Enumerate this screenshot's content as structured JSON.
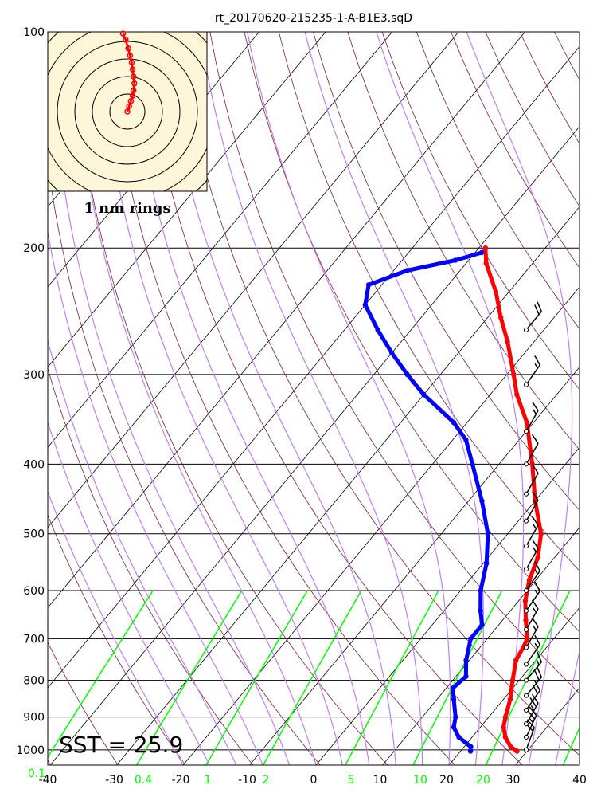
{
  "chart_data": {
    "type": "skew-t",
    "title": "rt_20170620-215235-1-A-B1E3.sqD",
    "pressure_ticks": [
      100,
      200,
      300,
      400,
      500,
      600,
      700,
      800,
      900,
      1000
    ],
    "temperature_ticks": [
      -40,
      -30,
      -20,
      -10,
      0,
      10,
      20,
      30,
      40
    ],
    "mixing_ratio_labels": [
      "0.1",
      "0.4",
      "1",
      "2",
      "5",
      "10",
      "20"
    ],
    "sst_label": "SST = 25.9",
    "hodograph_label": "1 nm rings",
    "colors": {
      "temperature": "#ff0000",
      "dewpoint": "#0000ff",
      "mixing_ratio": "#00ff00",
      "moist_adiabat": "#bf80f0",
      "dry_adiabat": "#7a2035",
      "isotherm": "#000000",
      "hodograph_bg": "#fdf6d8"
    },
    "temperature_profile": [
      {
        "p": 1004,
        "t": 28.5
      },
      {
        "p": 990,
        "t": 27.0
      },
      {
        "p": 960,
        "t": 25.0
      },
      {
        "p": 930,
        "t": 23.5
      },
      {
        "p": 900,
        "t": 22.5
      },
      {
        "p": 850,
        "t": 21.0
      },
      {
        "p": 800,
        "t": 19.0
      },
      {
        "p": 750,
        "t": 17.0
      },
      {
        "p": 720,
        "t": 16.5
      },
      {
        "p": 700,
        "t": 16.0
      },
      {
        "p": 660,
        "t": 13.5
      },
      {
        "p": 620,
        "t": 11.0
      },
      {
        "p": 580,
        "t": 9.0
      },
      {
        "p": 540,
        "t": 7.5
      },
      {
        "p": 500,
        "t": 5.0
      },
      {
        "p": 450,
        "t": 0.0
      },
      {
        "p": 400,
        "t": -5.0
      },
      {
        "p": 350,
        "t": -11.0
      },
      {
        "p": 320,
        "t": -16.0
      },
      {
        "p": 300,
        "t": -19.0
      },
      {
        "p": 270,
        "t": -24.0
      },
      {
        "p": 250,
        "t": -28.0
      },
      {
        "p": 230,
        "t": -32.0
      },
      {
        "p": 210,
        "t": -37.0
      },
      {
        "p": 200,
        "t": -39.0
      }
    ],
    "dewpoint_profile": [
      {
        "p": 1004,
        "t": 21.5
      },
      {
        "p": 990,
        "t": 21.0
      },
      {
        "p": 960,
        "t": 18.0
      },
      {
        "p": 930,
        "t": 16.0
      },
      {
        "p": 900,
        "t": 15.0
      },
      {
        "p": 850,
        "t": 12.5
      },
      {
        "p": 820,
        "t": 11.0
      },
      {
        "p": 790,
        "t": 11.5
      },
      {
        "p": 750,
        "t": 9.5
      },
      {
        "p": 700,
        "t": 7.5
      },
      {
        "p": 670,
        "t": 7.5
      },
      {
        "p": 640,
        "t": 5.5
      },
      {
        "p": 600,
        "t": 3.0
      },
      {
        "p": 550,
        "t": 0.5
      },
      {
        "p": 500,
        "t": -3.0
      },
      {
        "p": 450,
        "t": -8.0
      },
      {
        "p": 400,
        "t": -14.0
      },
      {
        "p": 370,
        "t": -18.0
      },
      {
        "p": 350,
        "t": -22.0
      },
      {
        "p": 320,
        "t": -30.0
      },
      {
        "p": 300,
        "t": -35.0
      },
      {
        "p": 280,
        "t": -40.0
      },
      {
        "p": 260,
        "t": -45.0
      },
      {
        "p": 240,
        "t": -50.0
      },
      {
        "p": 225,
        "t": -52.0
      },
      {
        "p": 215,
        "t": -48.0
      },
      {
        "p": 208,
        "t": -42.0
      },
      {
        "p": 203,
        "t": -39.0
      }
    ],
    "wind_barbs": [
      {
        "p": 1000,
        "spd": 20,
        "dir": 200
      },
      {
        "p": 960,
        "spd": 25,
        "dir": 205
      },
      {
        "p": 920,
        "spd": 25,
        "dir": 210
      },
      {
        "p": 880,
        "spd": 20,
        "dir": 215
      },
      {
        "p": 840,
        "spd": 20,
        "dir": 220
      },
      {
        "p": 800,
        "spd": 15,
        "dir": 220
      },
      {
        "p": 760,
        "spd": 15,
        "dir": 215
      },
      {
        "p": 720,
        "spd": 15,
        "dir": 210
      },
      {
        "p": 680,
        "spd": 15,
        "dir": 210
      },
      {
        "p": 640,
        "spd": 15,
        "dir": 215
      },
      {
        "p": 600,
        "spd": 15,
        "dir": 215
      },
      {
        "p": 560,
        "spd": 15,
        "dir": 210
      },
      {
        "p": 520,
        "spd": 15,
        "dir": 210
      },
      {
        "p": 480,
        "spd": 15,
        "dir": 210
      },
      {
        "p": 440,
        "spd": 10,
        "dir": 210
      },
      {
        "p": 400,
        "spd": 10,
        "dir": 210
      },
      {
        "p": 360,
        "spd": 15,
        "dir": 210
      },
      {
        "p": 310,
        "spd": 15,
        "dir": 215
      },
      {
        "p": 260,
        "spd": 20,
        "dir": 220
      }
    ],
    "hodograph_trace": [
      {
        "u": 0.0,
        "v": 0.0
      },
      {
        "u": 0.1,
        "v": 0.3
      },
      {
        "u": 0.2,
        "v": 0.6
      },
      {
        "u": 0.3,
        "v": 0.9
      },
      {
        "u": 0.35,
        "v": 1.2
      },
      {
        "u": 0.4,
        "v": 1.6
      },
      {
        "u": 0.35,
        "v": 2.0
      },
      {
        "u": 0.3,
        "v": 2.4
      },
      {
        "u": 0.25,
        "v": 2.8
      },
      {
        "u": 0.15,
        "v": 3.2
      },
      {
        "u": 0.05,
        "v": 3.6
      },
      {
        "u": -0.1,
        "v": 4.1
      },
      {
        "u": -0.25,
        "v": 4.45
      }
    ]
  }
}
